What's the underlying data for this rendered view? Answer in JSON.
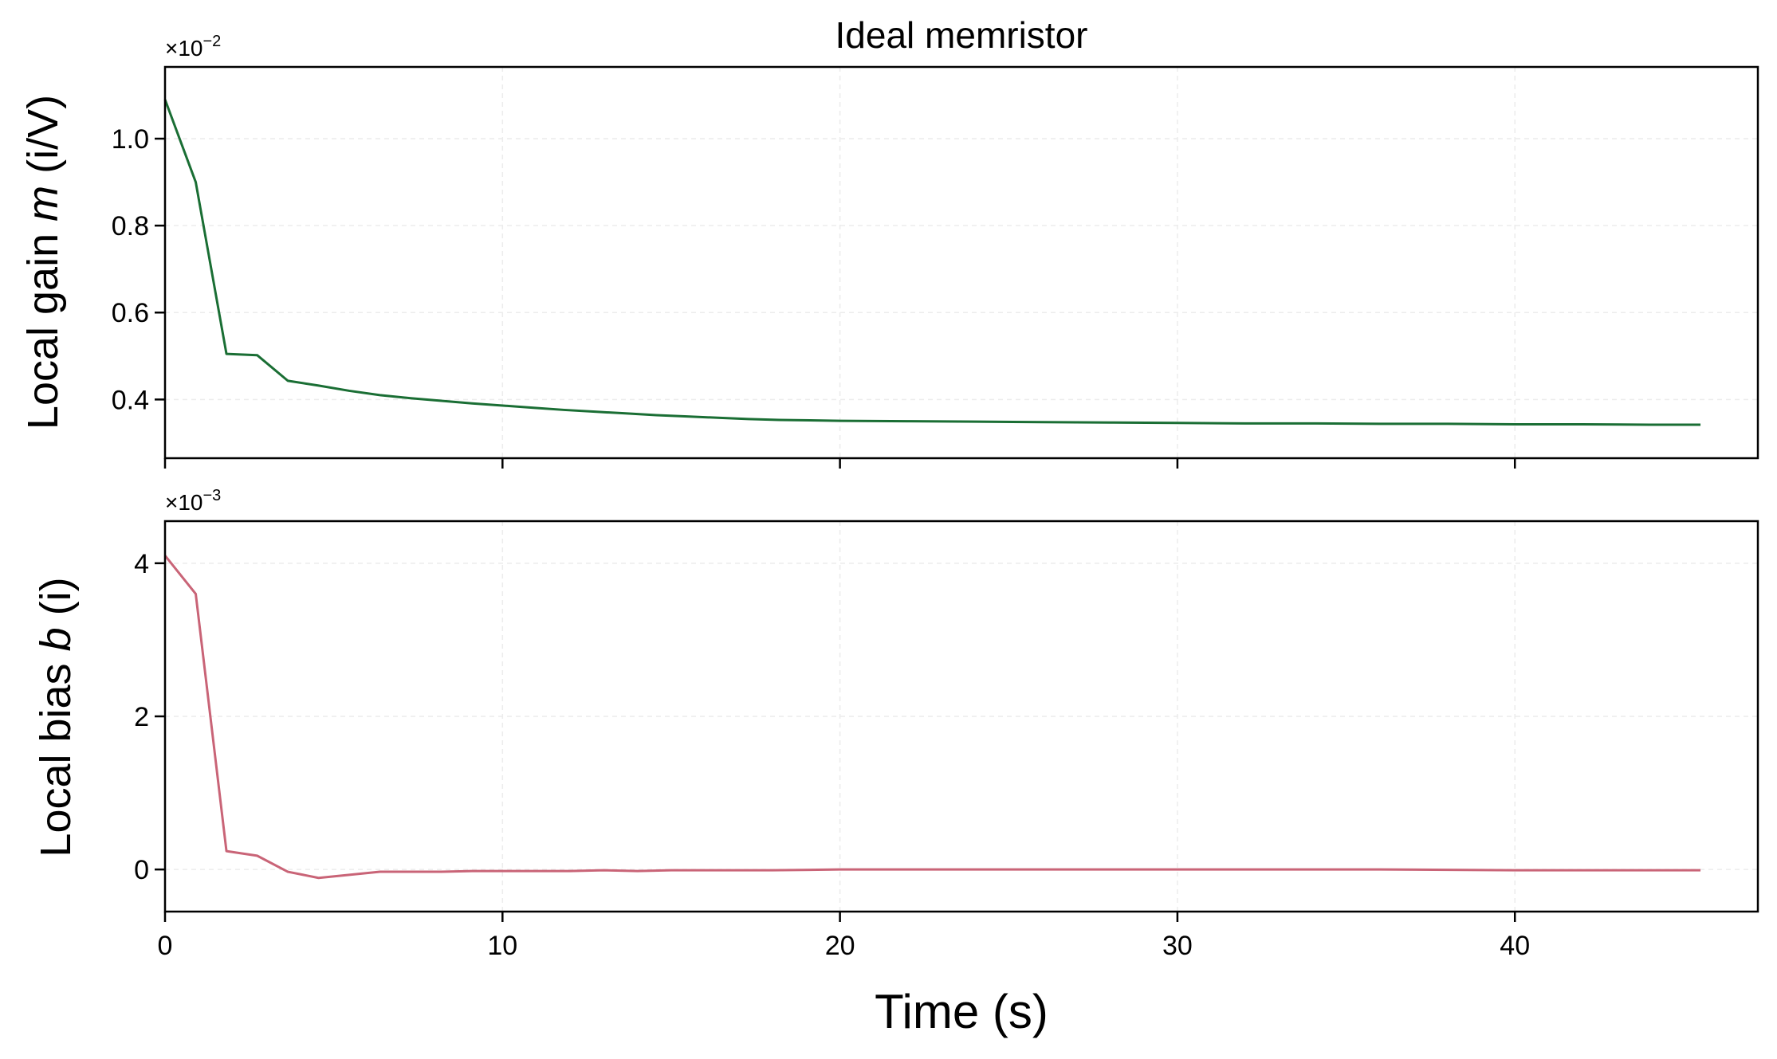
{
  "chart_data": [
    {
      "type": "line",
      "title": "Ideal memristor",
      "ylabel": {
        "before": "Local gain ",
        "var": "m",
        "after": " (i/V)"
      },
      "multiplier": {
        "base": "×10",
        "exp": "−2"
      },
      "xlim": [
        0,
        47.2
      ],
      "ylim": [
        0.265,
        1.165
      ],
      "xticks": [
        0,
        10,
        20,
        30,
        40
      ],
      "yticks": [
        0.4,
        0.6,
        0.8,
        1.0
      ],
      "ytick_labels": [
        "0.4",
        "0.6",
        "0.8",
        "1.0"
      ],
      "grid": true,
      "series": [
        {
          "color": "#1a6e34",
          "x": [
            0,
            0.91,
            1.82,
            2.73,
            3.64,
            4.55,
            5.46,
            6.37,
            7.28,
            8.19,
            9.1,
            10.01,
            10.92,
            11.83,
            12.74,
            13.65,
            14.56,
            15.47,
            16.38,
            17.29,
            18.2,
            19.11,
            20.02,
            22,
            24,
            26,
            28,
            30,
            32,
            34,
            36,
            38,
            40,
            42,
            44,
            45.5
          ],
          "y": [
            1.09,
            0.9,
            0.505,
            0.502,
            0.443,
            0.432,
            0.42,
            0.41,
            0.403,
            0.397,
            0.391,
            0.386,
            0.381,
            0.376,
            0.372,
            0.368,
            0.364,
            0.361,
            0.358,
            0.355,
            0.353,
            0.352,
            0.351,
            0.35,
            0.349,
            0.348,
            0.347,
            0.346,
            0.345,
            0.345,
            0.344,
            0.344,
            0.343,
            0.343,
            0.342,
            0.342
          ]
        }
      ]
    },
    {
      "type": "line",
      "ylabel": {
        "before": "Local bias ",
        "var": "b",
        "after": " (i)"
      },
      "multiplier": {
        "base": "×10",
        "exp": "−3"
      },
      "xlabel": "Time (s)",
      "xlim": [
        0,
        47.2
      ],
      "ylim": [
        -0.55,
        4.55
      ],
      "xticks": [
        0,
        10,
        20,
        30,
        40
      ],
      "xtick_labels": [
        "0",
        "10",
        "20",
        "30",
        "40"
      ],
      "yticks": [
        0,
        2,
        4
      ],
      "ytick_labels": [
        "0",
        "2",
        "4"
      ],
      "grid": true,
      "series": [
        {
          "color": "#c96477",
          "x": [
            0,
            0.91,
            1.82,
            2.73,
            3.64,
            4.55,
            5.46,
            6.37,
            7.28,
            8.19,
            9.1,
            10.01,
            11,
            12,
            13,
            14,
            15,
            16,
            18,
            20,
            24,
            28,
            32,
            36,
            40,
            45.5
          ],
          "y": [
            4.1,
            3.6,
            0.24,
            0.18,
            -0.03,
            -0.11,
            -0.07,
            -0.03,
            -0.03,
            -0.03,
            -0.02,
            -0.02,
            -0.02,
            -0.02,
            -0.01,
            -0.02,
            -0.01,
            -0.01,
            -0.01,
            0,
            0,
            0,
            0,
            0,
            -0.01,
            -0.01
          ]
        }
      ]
    }
  ]
}
